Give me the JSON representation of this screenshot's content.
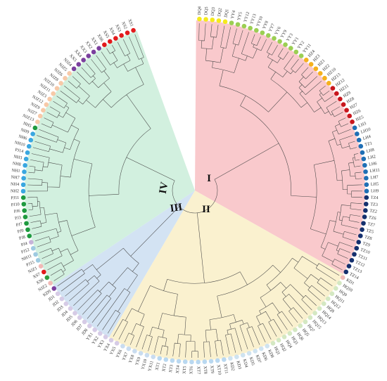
{
  "diagram": {
    "type": "circular-phylogenetic-tree",
    "clades": [
      {
        "id": "I",
        "label": "I",
        "color": "#f9c9cc"
      },
      {
        "id": "II",
        "label": "II",
        "color": "#faf1cf"
      },
      {
        "id": "III",
        "label": "III",
        "color": "#d3e3f3"
      },
      {
        "id": "IV",
        "label": "IV",
        "color": "#d2f0df"
      }
    ],
    "leaves": [
      {
        "label": "DQ4",
        "color": "#f5ea1c",
        "clade": "I"
      },
      {
        "label": "DQ5",
        "color": "#f5ea1c",
        "clade": "I"
      },
      {
        "label": "DQ3",
        "color": "#f5ea1c",
        "clade": "I"
      },
      {
        "label": "DQ2",
        "color": "#f5ea1c",
        "clade": "I"
      },
      {
        "label": "DQ1",
        "color": "#f5ea1c",
        "clade": "I"
      },
      {
        "label": "YY4",
        "color": "#9bcf53",
        "clade": "I"
      },
      {
        "label": "YY5",
        "color": "#9bcf53",
        "clade": "I"
      },
      {
        "label": "YY12",
        "color": "#9bcf53",
        "clade": "I"
      },
      {
        "label": "YY13",
        "color": "#9bcf53",
        "clade": "I"
      },
      {
        "label": "YY10",
        "color": "#9bcf53",
        "clade": "I"
      },
      {
        "label": "YY8",
        "color": "#9bcf53",
        "clade": "I"
      },
      {
        "label": "YY7",
        "color": "#9bcf53",
        "clade": "I"
      },
      {
        "label": "YY6",
        "color": "#9bcf53",
        "clade": "I"
      },
      {
        "label": "YY9",
        "color": "#9bcf53",
        "clade": "I"
      },
      {
        "label": "YY3",
        "color": "#9bcf53",
        "clade": "I"
      },
      {
        "label": "YY1",
        "color": "#9bcf53",
        "clade": "I"
      },
      {
        "label": "YY2",
        "color": "#9bcf53",
        "clade": "I"
      },
      {
        "label": "YY11",
        "color": "#9bcf53",
        "clade": "I"
      },
      {
        "label": "HZ4",
        "color": "#f5b11c",
        "clade": "I"
      },
      {
        "label": "HZ3",
        "color": "#f5b11c",
        "clade": "I"
      },
      {
        "label": "HZ1",
        "color": "#f5b11c",
        "clade": "I"
      },
      {
        "label": "HZ2",
        "color": "#f5b11c",
        "clade": "I"
      },
      {
        "label": "HZ10",
        "color": "#f5b11c",
        "clade": "I"
      },
      {
        "label": "HZ13",
        "color": "#f5b11c",
        "clade": "I"
      },
      {
        "label": "HZ12",
        "color": "#c8161d",
        "clade": "I"
      },
      {
        "label": "HZ11",
        "color": "#c8161d",
        "clade": "I"
      },
      {
        "label": "HZ9",
        "color": "#c8161d",
        "clade": "I"
      },
      {
        "label": "HZ8",
        "color": "#c8161d",
        "clade": "I"
      },
      {
        "label": "HZ7",
        "color": "#c8161d",
        "clade": "I"
      },
      {
        "label": "HZ6",
        "color": "#c8161d",
        "clade": "I"
      },
      {
        "label": "HZ5",
        "color": "#c8161d",
        "clade": "I"
      },
      {
        "label": "LH3",
        "color": "#1f6fb5",
        "clade": "I"
      },
      {
        "label": "LH10",
        "color": "#1f6fb5",
        "clade": "I"
      },
      {
        "label": "LH4",
        "color": "#1f6fb5",
        "clade": "I"
      },
      {
        "label": "TZ1",
        "color": "#1f6fb5",
        "clade": "I"
      },
      {
        "label": "LH8",
        "color": "#1f6fb5",
        "clade": "I"
      },
      {
        "label": "LH2",
        "color": "#1f6fb5",
        "clade": "I"
      },
      {
        "label": "LH6",
        "color": "#1f6fb5",
        "clade": "I"
      },
      {
        "label": "LH11",
        "color": "#1f6fb5",
        "clade": "I"
      },
      {
        "label": "LH7",
        "color": "#1f6fb5",
        "clade": "I"
      },
      {
        "label": "LH5",
        "color": "#1f6fb5",
        "clade": "I"
      },
      {
        "label": "LH9",
        "color": "#1f6fb5",
        "clade": "I"
      },
      {
        "label": "TZ4",
        "color": "#15306e",
        "clade": "I"
      },
      {
        "label": "TZ3",
        "color": "#15306e",
        "clade": "I"
      },
      {
        "label": "TZ2",
        "color": "#15306e",
        "clade": "I"
      },
      {
        "label": "TZ6",
        "color": "#15306e",
        "clade": "I"
      },
      {
        "label": "TZ7",
        "color": "#15306e",
        "clade": "I"
      },
      {
        "label": "TZ5",
        "color": "#15306e",
        "clade": "I"
      },
      {
        "label": "TZ8",
        "color": "#15306e",
        "clade": "I"
      },
      {
        "label": "TZ9",
        "color": "#15306e",
        "clade": "I"
      },
      {
        "label": "TZ10",
        "color": "#15306e",
        "clade": "I"
      },
      {
        "label": "TZ11",
        "color": "#15306e",
        "clade": "I"
      },
      {
        "label": "TZ12",
        "color": "#15306e",
        "clade": "I"
      },
      {
        "label": "TZ13",
        "color": "#15306e",
        "clade": "I"
      },
      {
        "label": "TZ14",
        "color": "#15306e",
        "clade": "I"
      },
      {
        "label": "KD1",
        "color": "#f1b9b6",
        "clade": "II"
      },
      {
        "label": "HQ10",
        "color": "#d4e8c2",
        "clade": "II"
      },
      {
        "label": "HQ9",
        "color": "#d4e8c2",
        "clade": "II"
      },
      {
        "label": "HQ11",
        "color": "#d4e8c2",
        "clade": "II"
      },
      {
        "label": "HQ12",
        "color": "#d4e8c2",
        "clade": "II"
      },
      {
        "label": "HQ8",
        "color": "#d4e8c2",
        "clade": "II"
      },
      {
        "label": "HQ14",
        "color": "#d4e8c2",
        "clade": "II"
      },
      {
        "label": "HQ13",
        "color": "#d4e8c2",
        "clade": "II"
      },
      {
        "label": "HQ15",
        "color": "#d4e8c2",
        "clade": "II"
      },
      {
        "label": "HQ7",
        "color": "#d4e8c2",
        "clade": "II"
      },
      {
        "label": "HQ5",
        "color": "#d4e8c2",
        "clade": "II"
      },
      {
        "label": "HQ6",
        "color": "#d4e8c2",
        "clade": "II"
      },
      {
        "label": "HQ3",
        "color": "#d4e8c2",
        "clade": "II"
      },
      {
        "label": "HQ4",
        "color": "#d4e8c2",
        "clade": "II"
      },
      {
        "label": "HQ2",
        "color": "#d4e8c2",
        "clade": "II"
      },
      {
        "label": "HQ1",
        "color": "#d4e8c2",
        "clade": "II"
      },
      {
        "label": "KD8",
        "color": "#cfe3f0",
        "clade": "II"
      },
      {
        "label": "KD6",
        "color": "#cfe3f0",
        "clade": "II"
      },
      {
        "label": "KD7",
        "color": "#cfe3f0",
        "clade": "II"
      },
      {
        "label": "KD5",
        "color": "#cfe3f0",
        "clade": "II"
      },
      {
        "label": "KD4",
        "color": "#cfe3f0",
        "clade": "II"
      },
      {
        "label": "KD3",
        "color": "#cfe3f0",
        "clade": "II"
      },
      {
        "label": "KD2",
        "color": "#cfe3f0",
        "clade": "II"
      },
      {
        "label": "XT11",
        "color": "#b9d8f0",
        "clade": "II"
      },
      {
        "label": "XT10",
        "color": "#b9d8f0",
        "clade": "II"
      },
      {
        "label": "XT9",
        "color": "#b9d8f0",
        "clade": "II"
      },
      {
        "label": "XT8",
        "color": "#b9d8f0",
        "clade": "II"
      },
      {
        "label": "XT7",
        "color": "#b9d8f0",
        "clade": "II"
      },
      {
        "label": "XT6",
        "color": "#b9d8f0",
        "clade": "II"
      },
      {
        "label": "XT5",
        "color": "#b9d8f0",
        "clade": "II"
      },
      {
        "label": "XT4",
        "color": "#b9d8f0",
        "clade": "II"
      },
      {
        "label": "XT3",
        "color": "#b9d8f0",
        "clade": "II"
      },
      {
        "label": "XT2",
        "color": "#b9d8f0",
        "clade": "II"
      },
      {
        "label": "XT1",
        "color": "#b9d8f0",
        "clade": "II"
      },
      {
        "label": "YX11",
        "color": "#c9dcef",
        "clade": "II"
      },
      {
        "label": "YX10",
        "color": "#c9dcef",
        "clade": "II"
      },
      {
        "label": "YX9",
        "color": "#c9dcef",
        "clade": "II"
      },
      {
        "label": "YX8",
        "color": "#c9dcef",
        "clade": "II"
      },
      {
        "label": "YX7",
        "color": "#c9dcef",
        "clade": "II"
      },
      {
        "label": "YX6",
        "color": "#c9dcef",
        "clade": "II"
      },
      {
        "label": "YX5",
        "color": "#d6cbe6",
        "clade": "II"
      },
      {
        "label": "YX4",
        "color": "#d6cbe6",
        "clade": "II"
      },
      {
        "label": "YX3",
        "color": "#d6cbe6",
        "clade": "III"
      },
      {
        "label": "YX2",
        "color": "#d6cbe6",
        "clade": "III"
      },
      {
        "label": "YX1",
        "color": "#d6cbe6",
        "clade": "III"
      },
      {
        "label": "JD8",
        "color": "#d6cbe6",
        "clade": "III"
      },
      {
        "label": "JD7",
        "color": "#d6cbe6",
        "clade": "III"
      },
      {
        "label": "JD6",
        "color": "#d6cbe6",
        "clade": "III"
      },
      {
        "label": "JD5",
        "color": "#d6cbe6",
        "clade": "III"
      },
      {
        "label": "JD4",
        "color": "#d6cbe6",
        "clade": "III"
      },
      {
        "label": "JD3",
        "color": "#d6cbe6",
        "clade": "III"
      },
      {
        "label": "JD2",
        "color": "#d6cbe6",
        "clade": "III"
      },
      {
        "label": "JD1",
        "color": "#d6cbe6",
        "clade": "III"
      },
      {
        "label": "KD9",
        "color": "#7b3f9e",
        "clade": "III"
      },
      {
        "label": "NJZ2",
        "color": "#f1b9b6",
        "clade": "IV"
      },
      {
        "label": "XS8",
        "color": "#2e9c3f",
        "clade": "IV"
      },
      {
        "label": "XS7",
        "color": "#e31a1c",
        "clade": "IV"
      },
      {
        "label": "NJZ1",
        "color": "#f1b9b6",
        "clade": "IV"
      },
      {
        "label": "PJ15",
        "color": "#9ecae1",
        "clade": "IV"
      },
      {
        "label": "NH11",
        "color": "#9ecae1",
        "clade": "IV"
      },
      {
        "label": "PJ12",
        "color": "#9ecae1",
        "clade": "IV"
      },
      {
        "label": "PJ4",
        "color": "#c6b3d9",
        "clade": "IV"
      },
      {
        "label": "PJ8",
        "color": "#1e9a3f",
        "clade": "IV"
      },
      {
        "label": "PJ9",
        "color": "#1e9a3f",
        "clade": "IV"
      },
      {
        "label": "PJ7",
        "color": "#1e9a3f",
        "clade": "IV"
      },
      {
        "label": "PJ3",
        "color": "#1e9a3f",
        "clade": "IV"
      },
      {
        "label": "PJ6",
        "color": "#1e9a3f",
        "clade": "IV"
      },
      {
        "label": "PJ10",
        "color": "#1e9a3f",
        "clade": "IV"
      },
      {
        "label": "PJ11",
        "color": "#1e9a3f",
        "clade": "IV"
      },
      {
        "label": "NH2",
        "color": "#3aa7e0",
        "clade": "IV"
      },
      {
        "label": "NH4",
        "color": "#3aa7e0",
        "clade": "IV"
      },
      {
        "label": "NH7",
        "color": "#3aa7e0",
        "clade": "IV"
      },
      {
        "label": "NH1",
        "color": "#3aa7e0",
        "clade": "IV"
      },
      {
        "label": "NH8",
        "color": "#3aa7e0",
        "clade": "IV"
      },
      {
        "label": "NH3",
        "color": "#3aa7e0",
        "clade": "IV"
      },
      {
        "label": "PJ14",
        "color": "#3aa7e0",
        "clade": "IV"
      },
      {
        "label": "NH10",
        "color": "#3aa7e0",
        "clade": "IV"
      },
      {
        "label": "NH6",
        "color": "#3aa7e0",
        "clade": "IV"
      },
      {
        "label": "NH9",
        "color": "#3aa7e0",
        "clade": "IV"
      },
      {
        "label": "NH5",
        "color": "#1e9a3f",
        "clade": "IV"
      },
      {
        "label": "NJZ13",
        "color": "#f7c9a8",
        "clade": "IV"
      },
      {
        "label": "NJZ7",
        "color": "#f7c9a8",
        "clade": "IV"
      },
      {
        "label": "NJZ9",
        "color": "#f7c9a8",
        "clade": "IV"
      },
      {
        "label": "NJZ12",
        "color": "#f7c9a8",
        "clade": "IV"
      },
      {
        "label": "NJZ3",
        "color": "#f7c9a8",
        "clade": "IV"
      },
      {
        "label": "NJZ11",
        "color": "#f7c9a8",
        "clade": "IV"
      },
      {
        "label": "NJZ10",
        "color": "#f7c9a8",
        "clade": "IV"
      },
      {
        "label": "NJZ8",
        "color": "#f7c9a8",
        "clade": "IV"
      },
      {
        "label": "NJZ6",
        "color": "#f7c9a8",
        "clade": "IV"
      },
      {
        "label": "NJZ5",
        "color": "#f7c9a8",
        "clade": "IV"
      },
      {
        "label": "NJZ4",
        "color": "#7b3f9e",
        "clade": "IV"
      },
      {
        "label": "XX5",
        "color": "#7b3f9e",
        "clade": "IV"
      },
      {
        "label": "XX4",
        "color": "#7b3f9e",
        "clade": "IV"
      },
      {
        "label": "XX3",
        "color": "#7b3f9e",
        "clade": "IV"
      },
      {
        "label": "XX2",
        "color": "#7b3f9e",
        "clade": "IV"
      },
      {
        "label": "XX1",
        "color": "#7b3f9e",
        "clade": "IV"
      },
      {
        "label": "XS6",
        "color": "#e31a1c",
        "clade": "IV"
      },
      {
        "label": "XS5",
        "color": "#e31a1c",
        "clade": "IV"
      },
      {
        "label": "XS4",
        "color": "#e31a1c",
        "clade": "IV"
      },
      {
        "label": "XS3",
        "color": "#e31a1c",
        "clade": "IV"
      },
      {
        "label": "XS2",
        "color": "#e31a1c",
        "clade": "IV"
      },
      {
        "label": "XS1",
        "color": "#e31a1c",
        "clade": "IV"
      }
    ]
  }
}
